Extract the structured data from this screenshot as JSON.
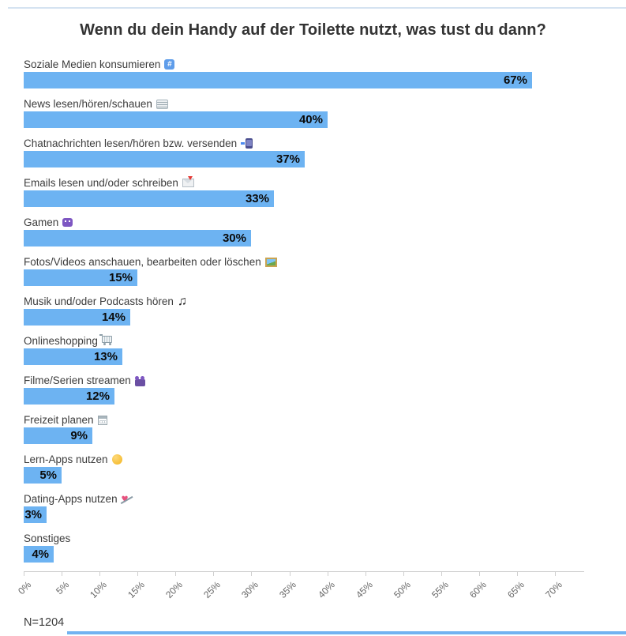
{
  "title": "Wenn du dein Handy auf der Toilette nutzt, was tust du dann?",
  "footnote": "N=1204",
  "accents": {
    "top_line_color": "#d5e3f1",
    "bottom_line_color": "#72b3f1",
    "bar_color": "#6db3f2",
    "value_label_color": "#0b0b0b",
    "axis_label_color": "#666666"
  },
  "chart_data": {
    "type": "bar",
    "orientation": "horizontal",
    "title": "Wenn du dein Handy auf der Toilette nutzt, was tust du dann?",
    "categories": [
      "Soziale Medien konsumieren",
      "News lesen/hören/schauen",
      "Chatnachrichten lesen/hören bzw. versenden",
      "Emails lesen und/oder schreiben",
      "Gamen",
      "Fotos/Videos anschauen, bearbeiten oder löschen",
      "Musik und/oder Podcasts hören",
      "Onlineshopping",
      "Filme/Serien streamen",
      "Freizeit planen",
      "Lern-Apps nutzen",
      "Dating-Apps nutzen",
      "Sonstiges"
    ],
    "values": [
      67,
      40,
      37,
      33,
      30,
      15,
      14,
      13,
      12,
      9,
      5,
      3,
      4
    ],
    "value_labels": [
      "67%",
      "40%",
      "37%",
      "33%",
      "30%",
      "15%",
      "14%",
      "13%",
      "12%",
      "9%",
      "5%",
      "3%",
      "4%"
    ],
    "icons": [
      {
        "name": "hash-keycap-icon",
        "emoji": "#️⃣"
      },
      {
        "name": "newspaper-icon",
        "emoji": "📰"
      },
      {
        "name": "phone-with-arrow-icon",
        "emoji": "📲"
      },
      {
        "name": "envelope-with-arrow-icon",
        "emoji": "📩"
      },
      {
        "name": "alien-monster-icon",
        "emoji": "👾"
      },
      {
        "name": "framed-picture-icon",
        "emoji": "🖼️"
      },
      {
        "name": "music-notes-icon",
        "emoji": "🎶"
      },
      {
        "name": "shopping-cart-icon",
        "emoji": "🛒"
      },
      {
        "name": "movie-camera-icon",
        "emoji": "🎥"
      },
      {
        "name": "calendar-icon",
        "emoji": "🗓️"
      },
      {
        "name": "thinking-face-icon",
        "emoji": "🤔"
      },
      {
        "name": "heart-with-arrow-icon",
        "emoji": "💘"
      },
      null
    ],
    "x_ticks": [
      "0%",
      "5%",
      "10%",
      "15%",
      "20%",
      "25%",
      "30%",
      "35%",
      "40%",
      "45%",
      "50%",
      "55%",
      "60%",
      "65%",
      "70%"
    ],
    "xlim": [
      0,
      70
    ],
    "xlabel": "",
    "ylabel": "",
    "grid": false,
    "legend": false,
    "sample_size_note": "N=1204"
  }
}
